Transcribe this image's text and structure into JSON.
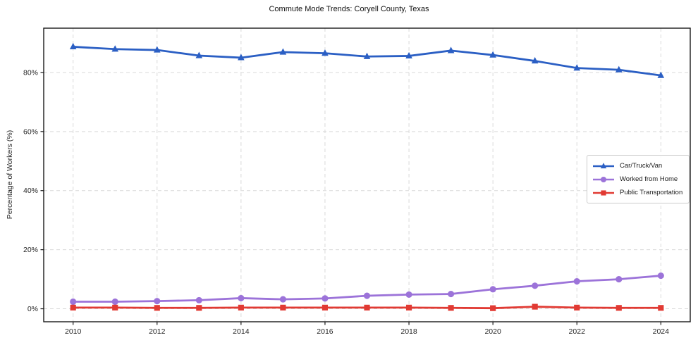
{
  "chart_data": {
    "type": "line",
    "title": "Commute Mode Trends: Coryell County, Texas",
    "xlabel": "",
    "ylabel": "Percentage of Workers (%)",
    "x": [
      2010,
      2011,
      2012,
      2013,
      2014,
      2015,
      2016,
      2017,
      2018,
      2019,
      2020,
      2021,
      2022,
      2023,
      2024
    ],
    "series": [
      {
        "name": "Car/Truck/Van",
        "color": "#2b5fc4",
        "marker": "triangle",
        "values": [
          88.7,
          87.9,
          87.6,
          85.7,
          85.0,
          86.9,
          86.5,
          85.4,
          85.6,
          87.4,
          85.9,
          83.9,
          81.5,
          80.9,
          79.0
        ]
      },
      {
        "name": "Worked from Home",
        "color": "#9c73d9",
        "marker": "circle",
        "values": [
          2.4,
          2.4,
          2.6,
          2.9,
          3.6,
          3.2,
          3.5,
          4.4,
          4.8,
          5.0,
          6.6,
          7.8,
          9.3,
          10.0,
          11.2
        ]
      },
      {
        "name": "Public Transportation",
        "color": "#e13a33",
        "marker": "square",
        "values": [
          0.4,
          0.4,
          0.3,
          0.3,
          0.4,
          0.4,
          0.4,
          0.4,
          0.4,
          0.3,
          0.2,
          0.7,
          0.4,
          0.3,
          0.3
        ]
      }
    ],
    "xticks": [
      2010,
      2012,
      2014,
      2016,
      2018,
      2020,
      2022,
      2024
    ],
    "yticks": [
      0,
      20,
      40,
      60,
      80
    ],
    "ytick_suffix": "%",
    "xlim": [
      2009.3,
      2024.7
    ],
    "ylim": [
      -4.4,
      95.0
    ],
    "grid": true,
    "grid_style": "dashed",
    "legend_position": "center right"
  },
  "colors": {
    "grid": "#d9d9d9",
    "spine": "#1a1a1a",
    "tick_text": "#262626",
    "background": "#ffffff"
  }
}
